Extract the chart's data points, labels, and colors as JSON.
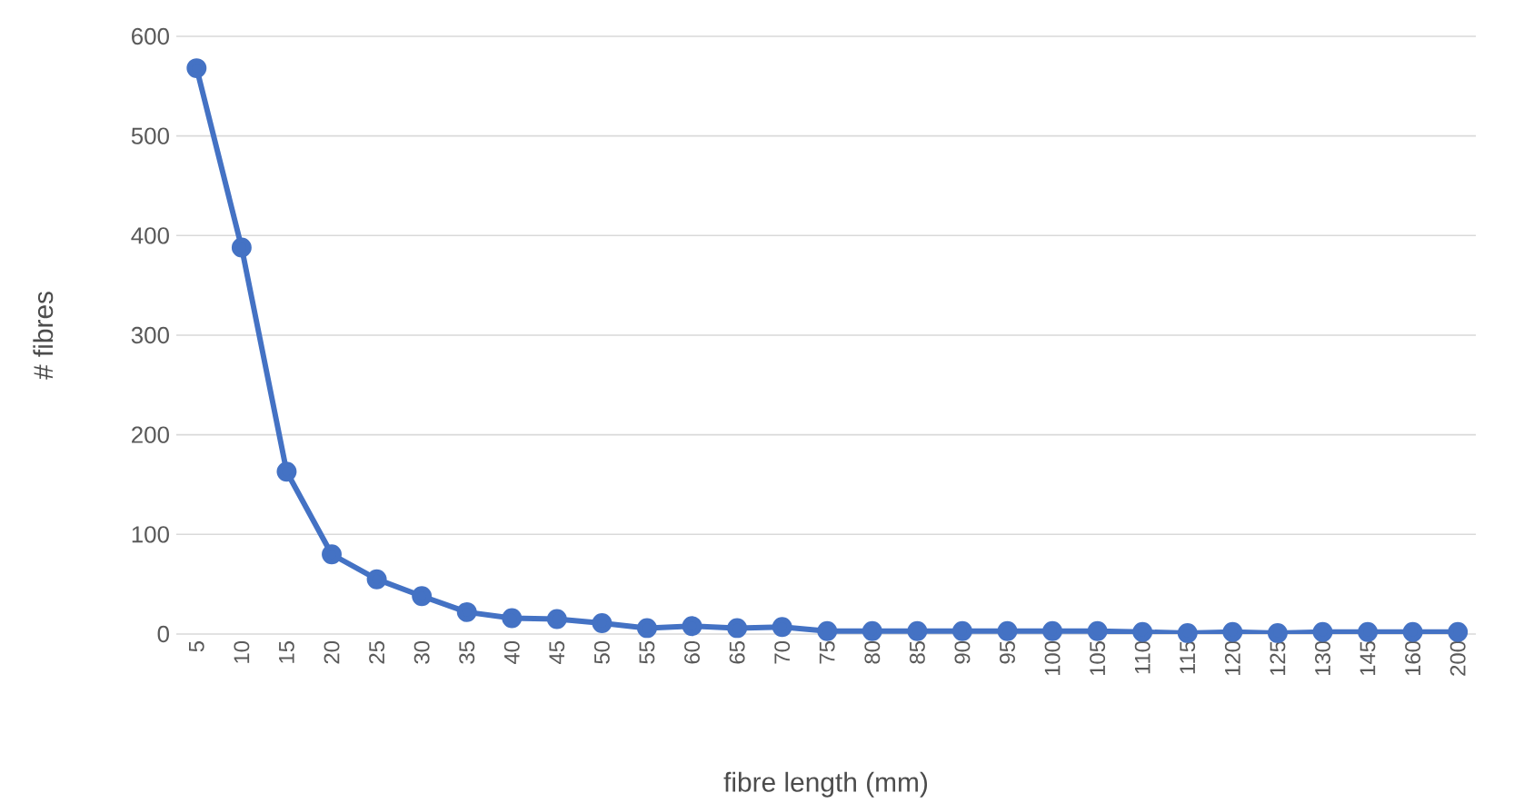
{
  "chart_data": {
    "type": "line",
    "xlabel": "fibre length (mm)",
    "ylabel": "# fibres",
    "categories": [
      "5",
      "10",
      "15",
      "20",
      "25",
      "30",
      "35",
      "40",
      "45",
      "50",
      "55",
      "60",
      "65",
      "70",
      "75",
      "80",
      "85",
      "90",
      "95",
      "100",
      "105",
      "110",
      "115",
      "120",
      "125",
      "130",
      "145",
      "160",
      "200"
    ],
    "series": [
      {
        "color": "#4472c4",
        "values": [
          568,
          388,
          163,
          80,
          55,
          38,
          22,
          16,
          15,
          11,
          6,
          8,
          6,
          7,
          3,
          3,
          3,
          3,
          3,
          3,
          3,
          2,
          1,
          2,
          1,
          2,
          2,
          2,
          2
        ]
      }
    ],
    "ylim": [
      0,
      600
    ],
    "yticks": [
      0,
      100,
      200,
      300,
      400,
      500,
      600
    ],
    "grid": "y",
    "marker": "circle",
    "line_style": "solid"
  }
}
